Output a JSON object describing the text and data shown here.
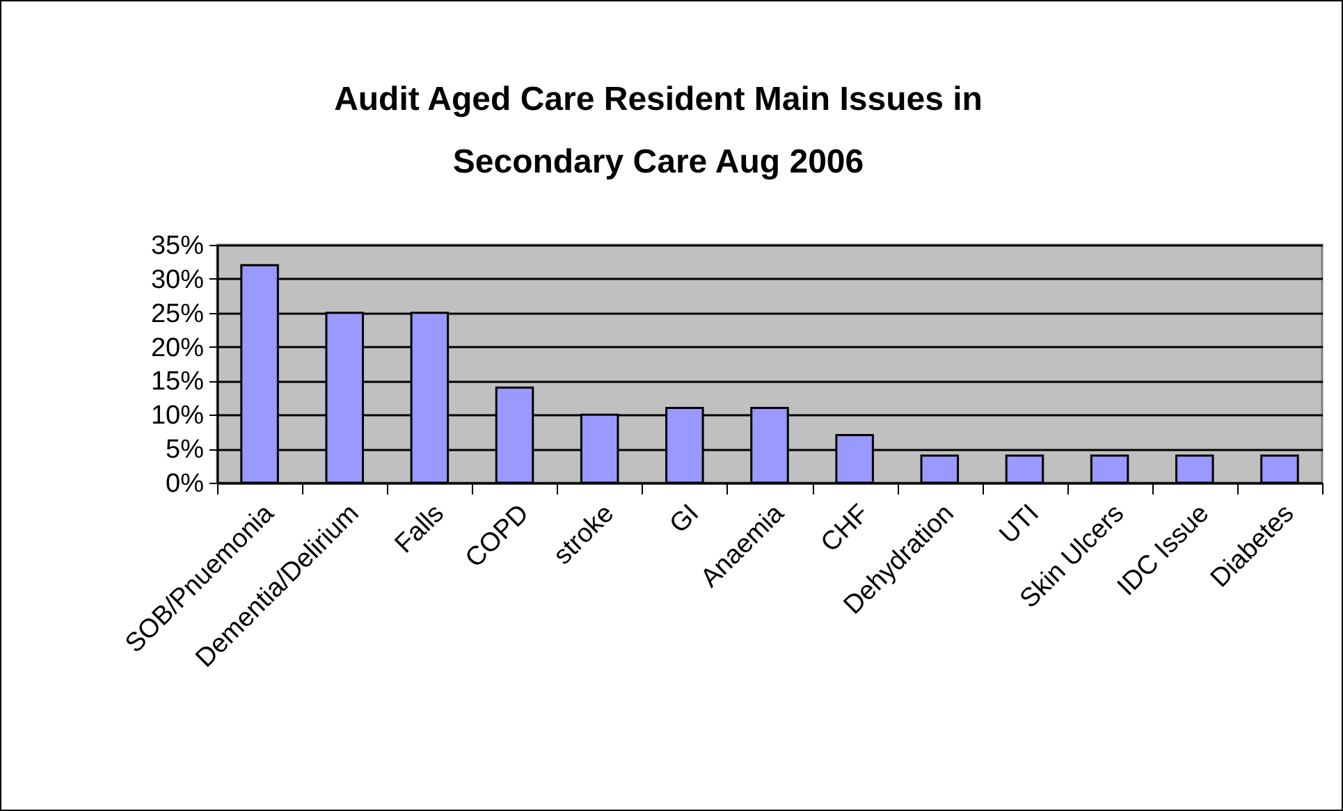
{
  "chart_data": {
    "type": "bar",
    "title": "Audit Aged Care Resident Main Issues in\nSecondary Care Aug 2006",
    "categories": [
      "SOB/Pnuemonia",
      "Dementia/Delirium",
      "Falls",
      "COPD",
      "stroke",
      "GI",
      "Anaemia",
      "CHF",
      "Dehydration",
      "UTI",
      "Skin Ulcers",
      "IDC Issue",
      "Diabetes"
    ],
    "values": [
      32,
      25,
      25,
      14,
      10,
      11,
      11,
      7,
      4,
      4,
      4,
      4,
      4
    ],
    "color": "#9999ff",
    "ylim": [
      0,
      35
    ],
    "yticks": [
      {
        "value": 0,
        "label": "0%"
      },
      {
        "value": 5,
        "label": "5%"
      },
      {
        "value": 10,
        "label": "10%"
      },
      {
        "value": 15,
        "label": "15%"
      },
      {
        "value": 20,
        "label": "20%"
      },
      {
        "value": 25,
        "label": "25%"
      },
      {
        "value": 30,
        "label": "30%"
      },
      {
        "value": 35,
        "label": "35%"
      }
    ],
    "grid": "y"
  }
}
